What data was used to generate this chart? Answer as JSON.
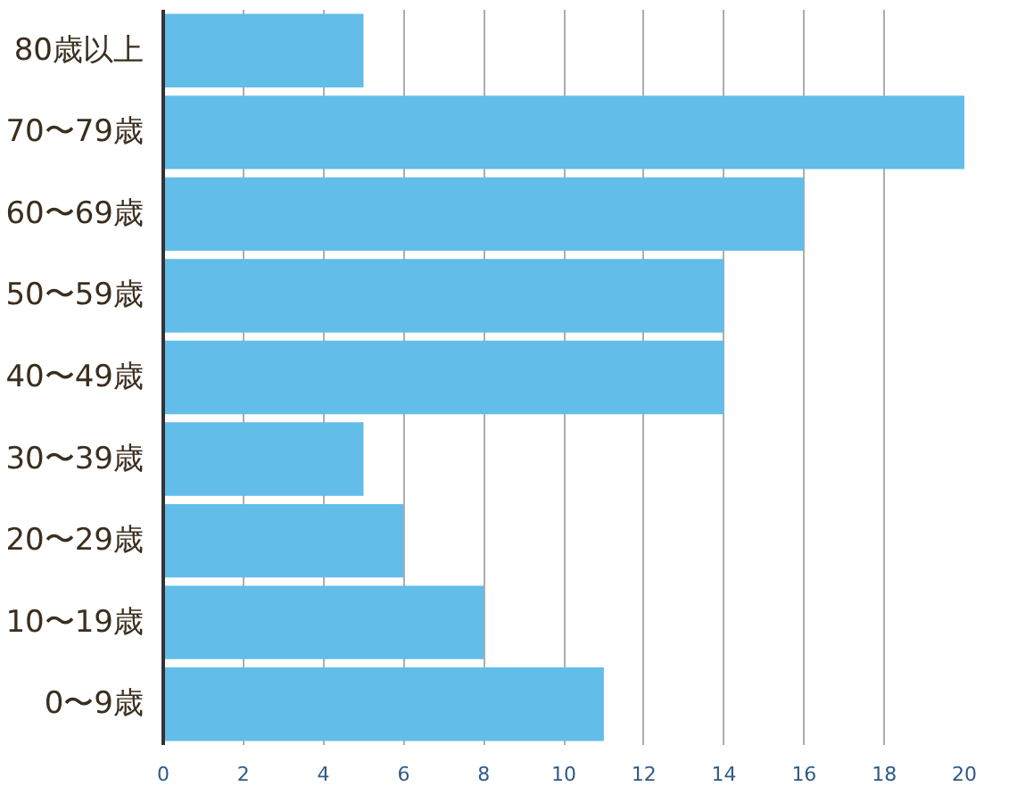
{
  "chart_data": {
    "type": "bar",
    "orientation": "horizontal",
    "categories": [
      "80歳以上",
      "70〜79歳",
      "60〜69歳",
      "50〜59歳",
      "40〜49歳",
      "30〜39歳",
      "20〜29歳",
      "10〜19歳",
      "0〜9歳"
    ],
    "values": [
      5,
      20,
      16,
      14,
      14,
      5,
      6,
      8,
      11
    ],
    "color": "#62bde9",
    "xlim": [
      0,
      20
    ],
    "xticks": [
      0,
      2,
      4,
      6,
      8,
      10,
      12,
      14,
      16,
      18,
      20
    ],
    "grid": "x"
  }
}
